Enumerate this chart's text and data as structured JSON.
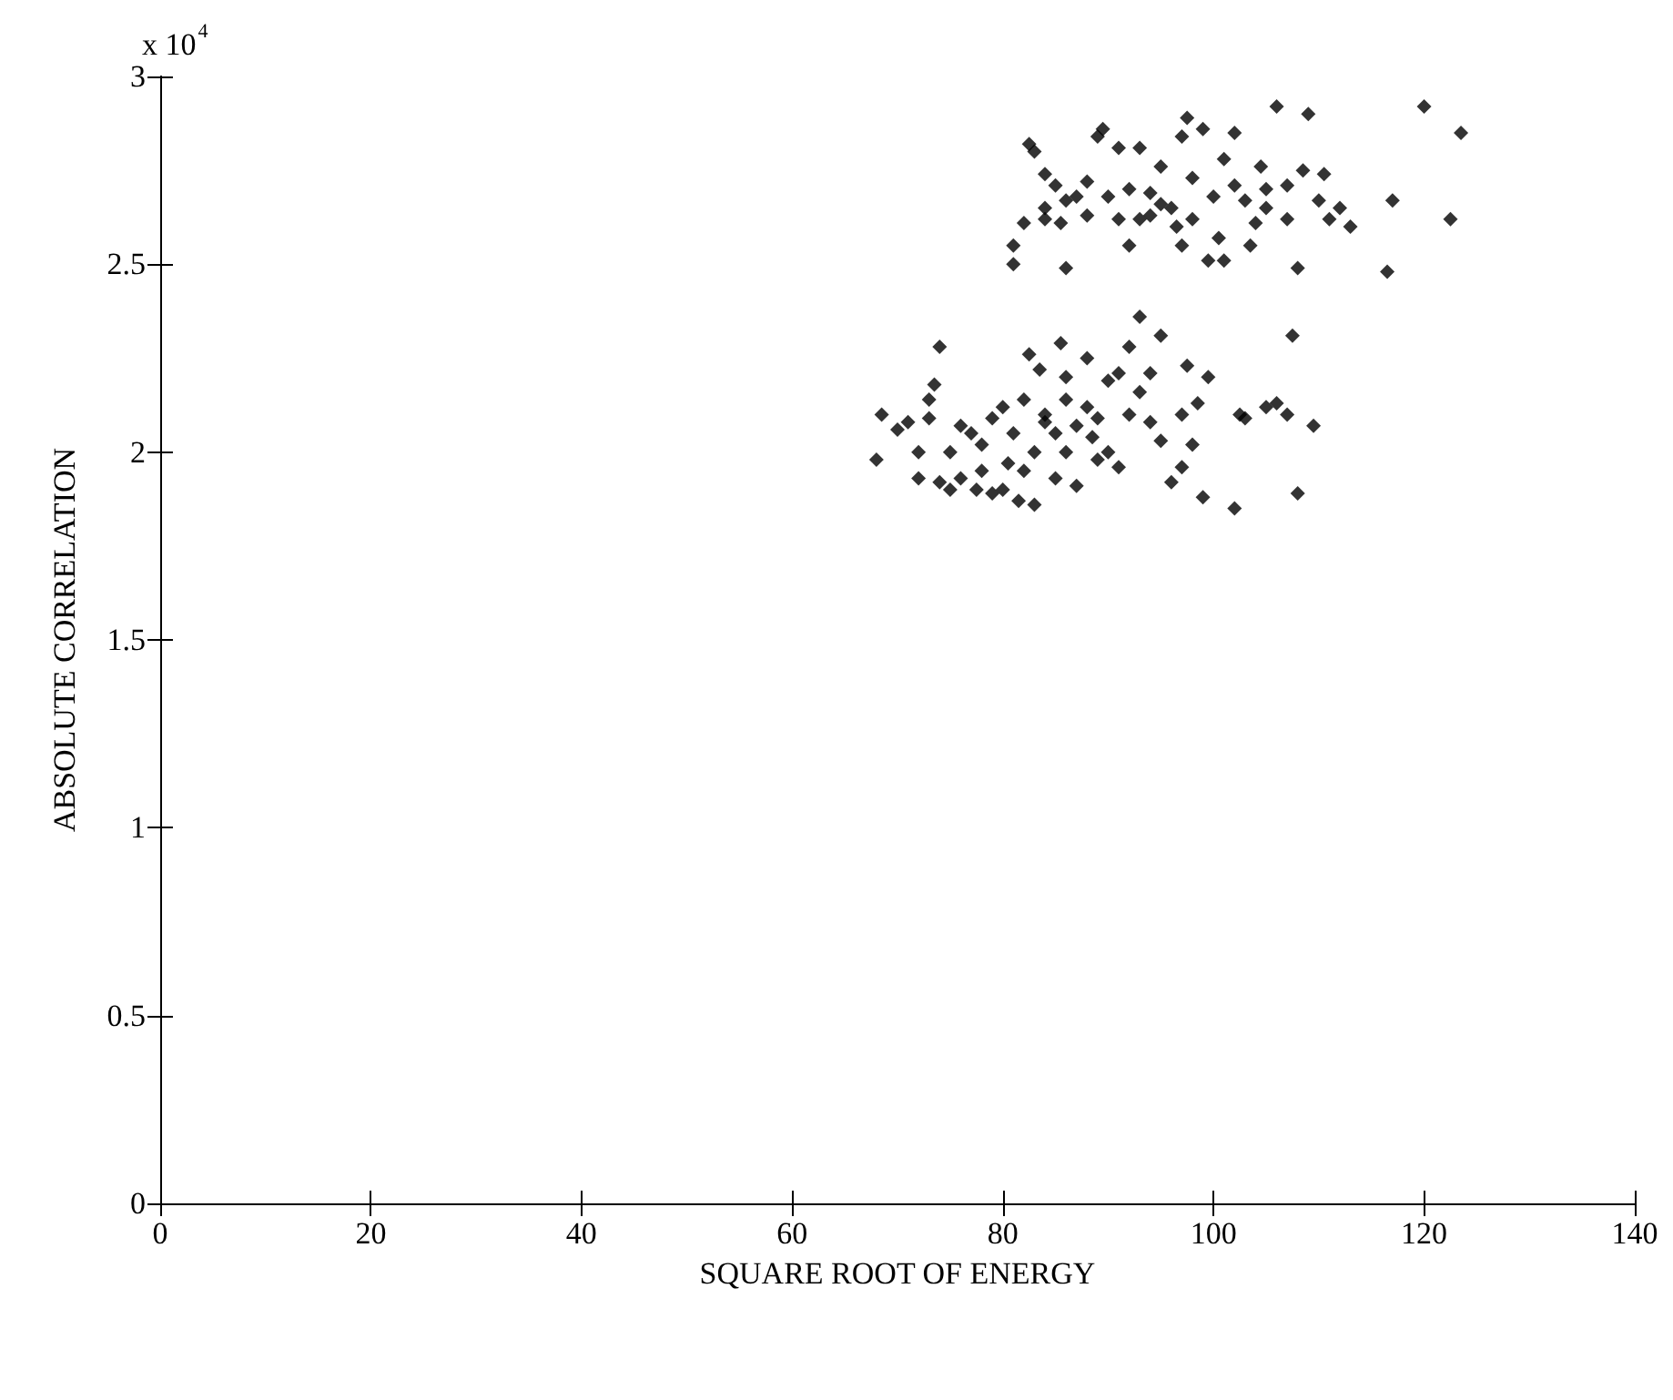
{
  "chart_data": {
    "type": "scatter",
    "xlabel": "SQUARE ROOT OF ENERGY",
    "ylabel": "ABSOLUTE CORRELATION",
    "annotations": [
      "x 10$^{4}$"
    ],
    "xlim": [
      0,
      140
    ],
    "xticks": [
      0,
      20,
      40,
      60,
      80,
      100,
      120,
      140
    ],
    "ylim": [
      0,
      3
    ],
    "yticks": [
      0,
      0.5,
      1,
      1.5,
      2,
      2.5,
      3
    ],
    "grid": false,
    "marker": "diamond",
    "series": [
      {
        "color": "#000000",
        "x": [
          81,
          81,
          82,
          82.5,
          83,
          84,
          84,
          85,
          85.5,
          86,
          86,
          87,
          88,
          88,
          89,
          89.5,
          90,
          91,
          92,
          92,
          93,
          93,
          94,
          95,
          95,
          96,
          96.5,
          97,
          97,
          97.5,
          98,
          98,
          99,
          99.5,
          100,
          100.5,
          101,
          101,
          102,
          102,
          103,
          103.5,
          104,
          104.5,
          105,
          105,
          106,
          107,
          107,
          108,
          108.5,
          109,
          110,
          110.5,
          111,
          112,
          113,
          116.5,
          117,
          120,
          122.5,
          123.5,
          84,
          91,
          94,
          68,
          68.5,
          70,
          71,
          72,
          72,
          73,
          73,
          73.5,
          74,
          74,
          75,
          75,
          76,
          76,
          77,
          77.5,
          78,
          78,
          79,
          79,
          80,
          80,
          80.5,
          81,
          81.5,
          82,
          82,
          82.5,
          83,
          83,
          83.5,
          84,
          84,
          85,
          85,
          85.5,
          86,
          86,
          86,
          87,
          87,
          88,
          88,
          88.5,
          89,
          89,
          90,
          90,
          91,
          91,
          92,
          92,
          93,
          93,
          94,
          94,
          95,
          95,
          96,
          97,
          97,
          97.5,
          98,
          98.5,
          99,
          99.5,
          102,
          102.5,
          103,
          105,
          106,
          107,
          107.5,
          108,
          109.5
        ],
        "values": [
          2.55,
          2.5,
          2.61,
          2.82,
          2.8,
          2.74,
          2.65,
          2.71,
          2.61,
          2.67,
          2.49,
          2.68,
          2.72,
          2.63,
          2.84,
          2.86,
          2.68,
          2.81,
          2.55,
          2.7,
          2.62,
          2.81,
          2.69,
          2.66,
          2.76,
          2.65,
          2.6,
          2.55,
          2.84,
          2.89,
          2.73,
          2.62,
          2.86,
          2.51,
          2.68,
          2.57,
          2.78,
          2.51,
          2.85,
          2.71,
          2.67,
          2.55,
          2.61,
          2.76,
          2.7,
          2.65,
          2.92,
          2.71,
          2.62,
          2.49,
          2.75,
          2.9,
          2.67,
          2.74,
          2.62,
          2.65,
          2.6,
          2.48,
          2.67,
          2.92,
          2.62,
          2.85,
          2.62,
          2.62,
          2.63,
          1.98,
          2.1,
          2.06,
          2.08,
          1.93,
          2,
          2.14,
          2.09,
          2.18,
          2.28,
          1.92,
          1.9,
          2,
          1.93,
          2.07,
          2.05,
          1.9,
          2.02,
          1.95,
          1.89,
          2.09,
          1.9,
          2.12,
          1.97,
          2.05,
          1.87,
          2.14,
          1.95,
          2.26,
          2,
          1.86,
          2.22,
          2.08,
          2.1,
          2.05,
          1.93,
          2.29,
          2.2,
          2.14,
          2,
          2.07,
          1.91,
          2.25,
          2.12,
          2.04,
          1.98,
          2.09,
          2.19,
          2,
          1.96,
          2.21,
          2.28,
          2.1,
          2.36,
          2.16,
          2.08,
          2.21,
          2.31,
          2.03,
          1.92,
          2.1,
          1.96,
          2.23,
          2.02,
          2.13,
          1.88,
          2.2,
          1.85,
          2.1,
          2.09,
          2.12,
          2.13,
          2.1,
          2.31,
          1.89,
          2.07
        ]
      }
    ]
  }
}
